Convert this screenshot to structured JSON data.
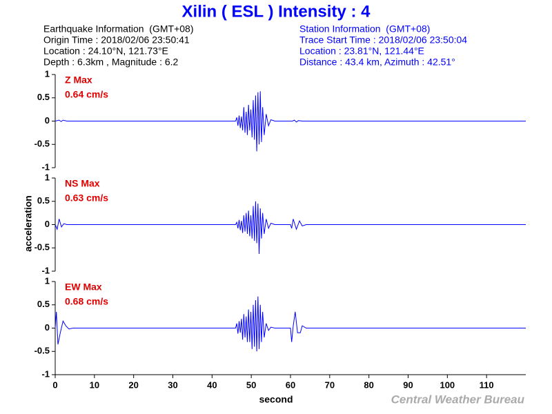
{
  "title": "Xilin ( ESL ) Intensity : 4",
  "earthquake_info": [
    "Earthquake Information  (GMT+08)",
    "Origin Time : 2018/02/06 23:50:41",
    "Location : 24.10°N, 121.73°E",
    "Depth : 6.3km , Magnitude : 6.2"
  ],
  "station_info": [
    "Station Information  (GMT+08)",
    "Trace Start Time : 2018/02/06 23:50:04",
    "Location : 23.81°N, 121.44°E",
    "Distance : 43.4 km, Azimuth : 42.51°"
  ],
  "ylabel": "acceleration",
  "xlabel": "second",
  "credit": "Central Weather Bureau",
  "chart_data": [
    {
      "type": "line",
      "label": "Z Max",
      "peak": "0.64 cm/s",
      "xlim": [
        0,
        120
      ],
      "ylim": [
        -1,
        1
      ],
      "yticks": [
        1,
        0.5,
        0,
        -0.5,
        -1
      ],
      "x": [
        0,
        1,
        1.5,
        2,
        3,
        46,
        46.3,
        46.6,
        46.9,
        47.2,
        47.5,
        47.8,
        48.1,
        48.4,
        48.7,
        49,
        49.3,
        49.6,
        49.9,
        50.2,
        50.5,
        50.8,
        51.1,
        51.4,
        51.7,
        52,
        52.3,
        52.6,
        52.9,
        53.3,
        53.8,
        54.4,
        55,
        56,
        60.5,
        61,
        61.5,
        62,
        63,
        120
      ],
      "series": [
        {
          "color": "#0000ff",
          "values": [
            0,
            0.02,
            -0.01,
            0.02,
            0,
            0,
            0.08,
            -0.1,
            0.12,
            -0.15,
            0.1,
            -0.2,
            0.3,
            -0.25,
            0.2,
            -0.3,
            0.35,
            -0.2,
            0.25,
            -0.35,
            0.45,
            -0.4,
            0.55,
            -0.65,
            0.62,
            -0.5,
            0.64,
            -0.45,
            0.3,
            -0.3,
            0.15,
            -0.1,
            0.03,
            0,
            0,
            0.02,
            -0.02,
            0.01,
            0,
            0
          ]
        }
      ]
    },
    {
      "type": "line",
      "label": "NS Max",
      "peak": "0.63 cm/s",
      "xlim": [
        0,
        120
      ],
      "ylim": [
        -1,
        1
      ],
      "yticks": [
        1,
        0.5,
        0,
        -0.5,
        -1
      ],
      "x": [
        0,
        0.5,
        1,
        1.6,
        2.2,
        3,
        46,
        46.3,
        46.6,
        46.9,
        47.2,
        47.5,
        47.8,
        48.1,
        48.4,
        48.7,
        49,
        49.3,
        49.6,
        49.9,
        50.2,
        50.5,
        50.8,
        51.1,
        51.4,
        51.7,
        52,
        52.3,
        52.6,
        52.9,
        53.3,
        53.8,
        54.4,
        55,
        56,
        60,
        60.3,
        60.7,
        61.5,
        62.3,
        63,
        64,
        120
      ],
      "series": [
        {
          "color": "#0000ff",
          "values": [
            0,
            -0.1,
            0.12,
            -0.05,
            0.02,
            0,
            0,
            0.05,
            -0.08,
            0.1,
            -0.12,
            0.08,
            -0.18,
            0.2,
            -0.15,
            0.25,
            -0.2,
            0.3,
            -0.25,
            0.2,
            -0.3,
            0.4,
            -0.35,
            0.5,
            -0.4,
            0.45,
            -0.63,
            0.35,
            -0.3,
            0.25,
            -0.2,
            0.12,
            -0.08,
            0.03,
            0,
            0,
            -0.08,
            0.12,
            -0.1,
            0.08,
            -0.03,
            0,
            0
          ]
        }
      ]
    },
    {
      "type": "line",
      "label": "EW Max",
      "peak": "0.68 cm/s",
      "xlim": [
        0,
        120
      ],
      "ylim": [
        -1,
        1
      ],
      "yticks": [
        1,
        0.5,
        0,
        -0.5,
        -1
      ],
      "xticks": [
        0,
        10,
        20,
        30,
        40,
        50,
        60,
        70,
        80,
        90,
        100,
        110
      ],
      "x": [
        0,
        0.3,
        0.7,
        1.3,
        2,
        2.7,
        3.5,
        4.5,
        46,
        46.3,
        46.6,
        46.9,
        47.2,
        47.5,
        47.8,
        48.1,
        48.4,
        48.7,
        49,
        49.3,
        49.6,
        49.9,
        50.2,
        50.5,
        50.8,
        51.1,
        51.4,
        51.7,
        52,
        52.3,
        52.6,
        52.9,
        53.3,
        53.8,
        54.4,
        55,
        56,
        60,
        60.3,
        60.7,
        61.2,
        61.8,
        62.5,
        63,
        64,
        120
      ],
      "series": [
        {
          "color": "#0000ff",
          "values": [
            0,
            0.35,
            -0.35,
            -0.1,
            0.15,
            0.05,
            -0.02,
            0,
            0,
            0.1,
            -0.12,
            0.15,
            -0.1,
            0.2,
            -0.25,
            0.3,
            -0.2,
            0.25,
            -0.3,
            0.4,
            -0.3,
            0.35,
            -0.45,
            0.5,
            -0.4,
            0.6,
            -0.5,
            0.68,
            -0.45,
            0.5,
            -0.3,
            0.35,
            -0.2,
            0.1,
            -0.05,
            0.02,
            0,
            0,
            -0.3,
            0.05,
            0.35,
            -0.1,
            -0.1,
            0.05,
            0,
            0
          ]
        }
      ]
    }
  ]
}
